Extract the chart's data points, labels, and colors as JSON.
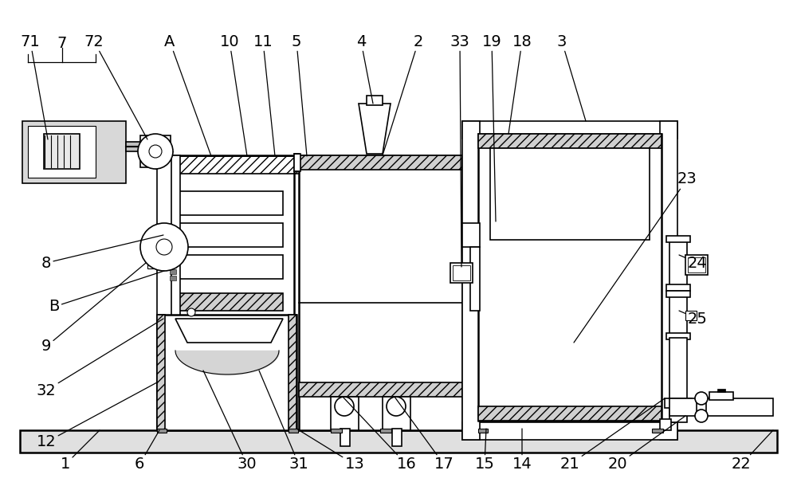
{
  "bg_color": "#ffffff",
  "lc": "#000000",
  "figsize": [
    10.0,
    6.1
  ],
  "dpi": 100,
  "label_fontsize": 14
}
